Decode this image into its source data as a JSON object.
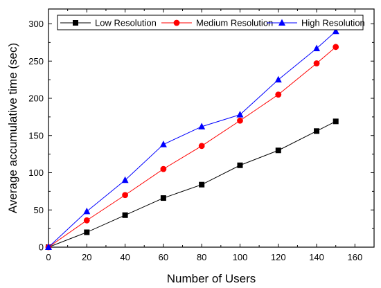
{
  "chart_data": {
    "type": "line",
    "xlabel": "Number of Users",
    "ylabel": "Average accumulative time (sec)",
    "xlim": [
      0,
      170
    ],
    "ylim": [
      0,
      320
    ],
    "xticks": [
      0,
      20,
      40,
      60,
      80,
      100,
      120,
      140,
      160
    ],
    "yticks": [
      0,
      50,
      100,
      150,
      200,
      250,
      300
    ],
    "grid": false,
    "legend_position": "top-right",
    "x": [
      0,
      20,
      40,
      60,
      80,
      100,
      120,
      140,
      150
    ],
    "series": [
      {
        "name": "Low Resolution",
        "color": "#000000",
        "marker": "square",
        "values": [
          0,
          20,
          43,
          66,
          84,
          110,
          130,
          156,
          169
        ]
      },
      {
        "name": "Medium Resolution",
        "color": "#ff0000",
        "marker": "circle",
        "values": [
          0,
          36,
          70,
          105,
          136,
          170,
          205,
          247,
          269
        ]
      },
      {
        "name": "High Resolution",
        "color": "#0000ff",
        "marker": "triangle",
        "values": [
          0,
          48,
          90,
          138,
          162,
          178,
          225,
          267,
          290
        ]
      }
    ]
  }
}
